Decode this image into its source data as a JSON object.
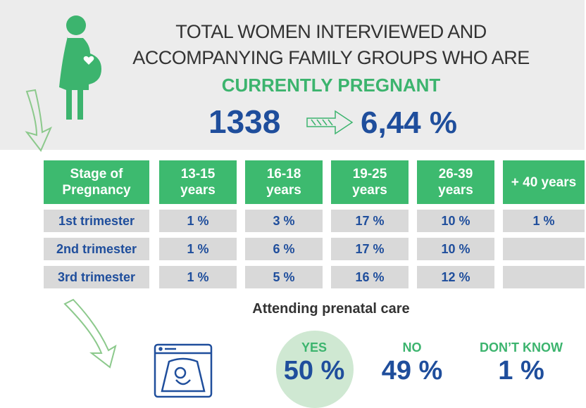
{
  "header": {
    "title_line1": "TOTAL WOMEN INTERVIEWED AND",
    "title_line2": "ACCOMPANYING FAMILY GROUPS WHO ARE",
    "highlight": "CURRENTLY PREGNANT",
    "total": "1338",
    "percent": "6,44 %"
  },
  "table": {
    "columns": [
      "Stage of Pregnancy",
      "13-15 years",
      "16-18 years",
      "19-25 years",
      "26-39 years",
      "+ 40 years"
    ],
    "rows": [
      [
        "1st trimester",
        "1 %",
        "3 %",
        "17 %",
        "10 %",
        "1 %"
      ],
      [
        "2nd trimester",
        "1 %",
        "6 %",
        "17 %",
        "10 %"
      ],
      [
        "3rd trimester",
        "1 %",
        "5 %",
        "16 %",
        "12 %"
      ]
    ]
  },
  "prenatal": {
    "title": "Attending prenatal care",
    "answers": [
      {
        "label": "YES",
        "value": "50 %"
      },
      {
        "label": "NO",
        "value": "49 %"
      },
      {
        "label": "DON’T KNOW",
        "value": "1 %"
      }
    ]
  }
}
